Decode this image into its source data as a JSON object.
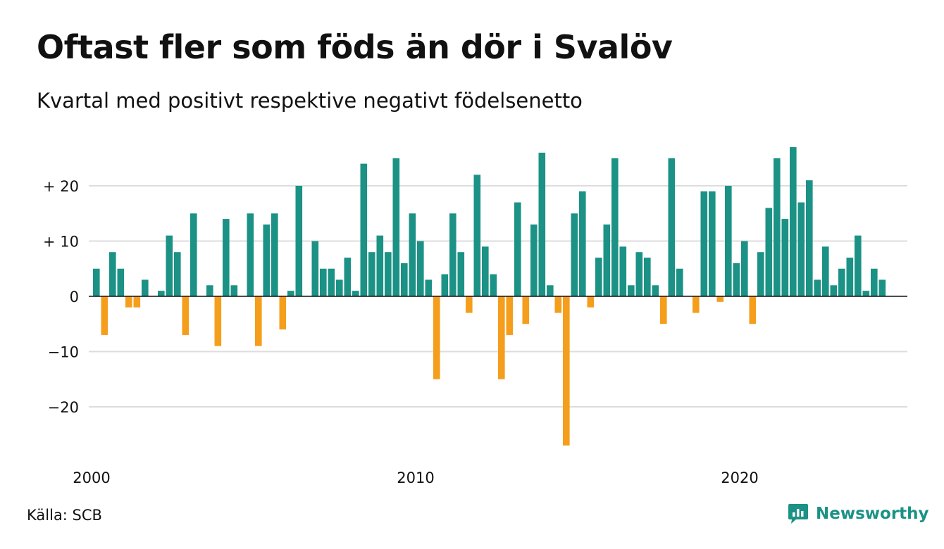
{
  "title": "Oftast fler som föds än dör i Svalöv",
  "subtitle": "Kvartal med positivt respektive negativt födelsenetto",
  "source": "Källa: SCB",
  "brand": {
    "name": "Newsworthy",
    "icon": "newsworthy-logo-icon"
  },
  "colors": {
    "positive": "#1b9285",
    "negative": "#f59e1c",
    "grid": "#dddddd",
    "zero": "#111111"
  },
  "chart_data": {
    "type": "bar",
    "x_start": "2000 Q1",
    "x_ticks": [
      {
        "label": "2000",
        "index": 0
      },
      {
        "label": "2010",
        "index": 40
      },
      {
        "label": "2020",
        "index": 80
      }
    ],
    "y_ticks": [
      {
        "label": "+ 20",
        "value": 20
      },
      {
        "label": "+ 10",
        "value": 10
      },
      {
        "label": "0",
        "value": 0
      },
      {
        "label": "−10",
        "value": -10
      },
      {
        "label": "−20",
        "value": -20
      }
    ],
    "ylim": [
      -28,
      28
    ],
    "grid": true,
    "values": [
      5,
      -7,
      8,
      5,
      -2,
      -2,
      3,
      0,
      1,
      11,
      8,
      -7,
      15,
      0,
      2,
      -9,
      14,
      2,
      0,
      15,
      -9,
      13,
      15,
      -6,
      1,
      20,
      0,
      10,
      5,
      5,
      3,
      7,
      1,
      24,
      8,
      11,
      8,
      25,
      6,
      15,
      10,
      3,
      -15,
      4,
      15,
      8,
      -3,
      22,
      9,
      4,
      -15,
      -7,
      17,
      -5,
      13,
      26,
      2,
      -3,
      -27,
      15,
      19,
      -2,
      7,
      13,
      25,
      9,
      2,
      8,
      7,
      2,
      -5,
      25,
      5,
      0,
      -3,
      19,
      19,
      -1,
      20,
      6,
      10,
      -5,
      8,
      16,
      25,
      14,
      27,
      17,
      21,
      3,
      9,
      2,
      5,
      7,
      11,
      1,
      5,
      3
    ]
  }
}
